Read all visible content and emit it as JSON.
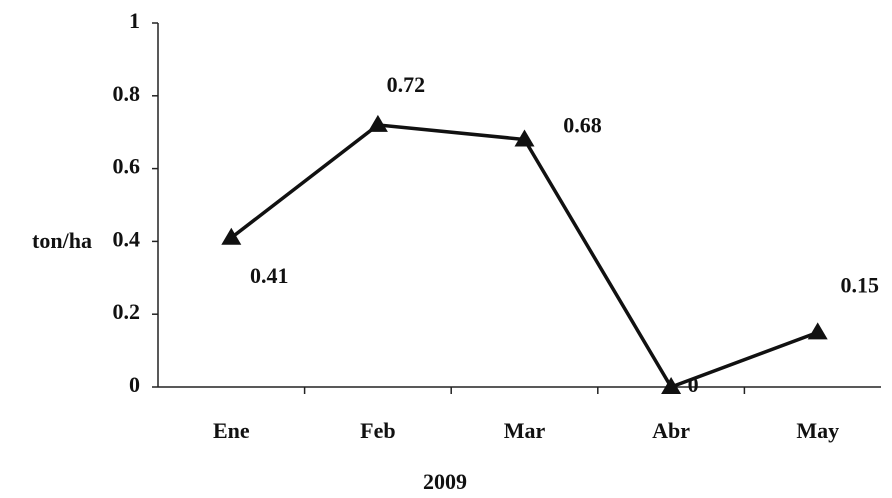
{
  "chart_data": {
    "type": "line",
    "x_label": "2009",
    "y_label": "ton/ha",
    "categories": [
      "Ene",
      "Feb",
      "Mar",
      "Abr",
      "May"
    ],
    "series": [
      {
        "name": "ton/ha",
        "color": "#111111",
        "values": [
          0.41,
          0.72,
          0.68,
          0,
          0.15
        ]
      }
    ],
    "ylim": [
      0,
      1
    ],
    "yticks": [
      0,
      0.2,
      0.4,
      0.6,
      0.8,
      1
    ]
  }
}
